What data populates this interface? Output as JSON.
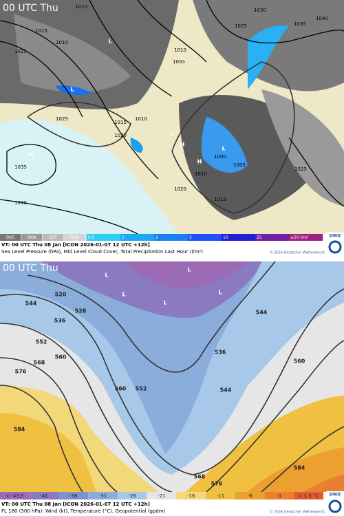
{
  "top_panel": {
    "time_label": "00 UTC Thu",
    "isobar_labels": [
      "1010",
      "1015",
      "1025",
      "1010",
      "1030",
      "1025",
      "1035",
      "1040",
      "1010",
      "1005",
      "1025",
      "1015",
      "1010",
      "1020",
      "1035",
      "1000",
      "1005",
      "1010",
      "1025",
      "1020",
      "1015",
      "1030"
    ],
    "pressure_centers": [
      "L",
      "L",
      "L",
      "H",
      "H",
      "L",
      "H",
      "L"
    ],
    "legend": {
      "cloud": [
        "OVC",
        "BKN",
        "SCT",
        "FEW"
      ],
      "precip": [
        "0.5",
        "1",
        "2",
        "5",
        "10",
        "25",
        "≥50 l/m²"
      ]
    },
    "valid_time": "VT: 00 UTC Thu  08 Jan [ICON 2026-01-07 12 UTC +12h]",
    "description": "Sea Level Pressure (hPa), Mid Level Cloud Cover, Total Precipitation Last Hour (l/m²)",
    "copyright": "© 2026 Deutscher Wetterdienst",
    "logo": "DWD"
  },
  "bottom_panel": {
    "time_label": "00 UTC Thu",
    "geopotential_labels": [
      "520",
      "528",
      "536",
      "544",
      "552",
      "560",
      "568",
      "576",
      "584",
      "560",
      "552",
      "536",
      "544",
      "544",
      "560",
      "568",
      "576",
      "584"
    ],
    "pressure_centers": [
      "L",
      "L",
      "L",
      "L",
      "L"
    ],
    "legend": [
      "< -43.5",
      "-41",
      "-36",
      "-31",
      "-26",
      "-21",
      "-16",
      "-11",
      "-6",
      "-1",
      "> 1.5 °C"
    ],
    "valid_time": "VT: 00 UTC Thu  08 Jan [ICON 2026-01-07 12 UTC +12h]",
    "description": "FL 180 (500 hPa): Wind (kt), Temperature (°C), Geopotential (gpdm)",
    "copyright": "© 2026 Deutscher Wetterdienst",
    "logo": "DWD"
  }
}
